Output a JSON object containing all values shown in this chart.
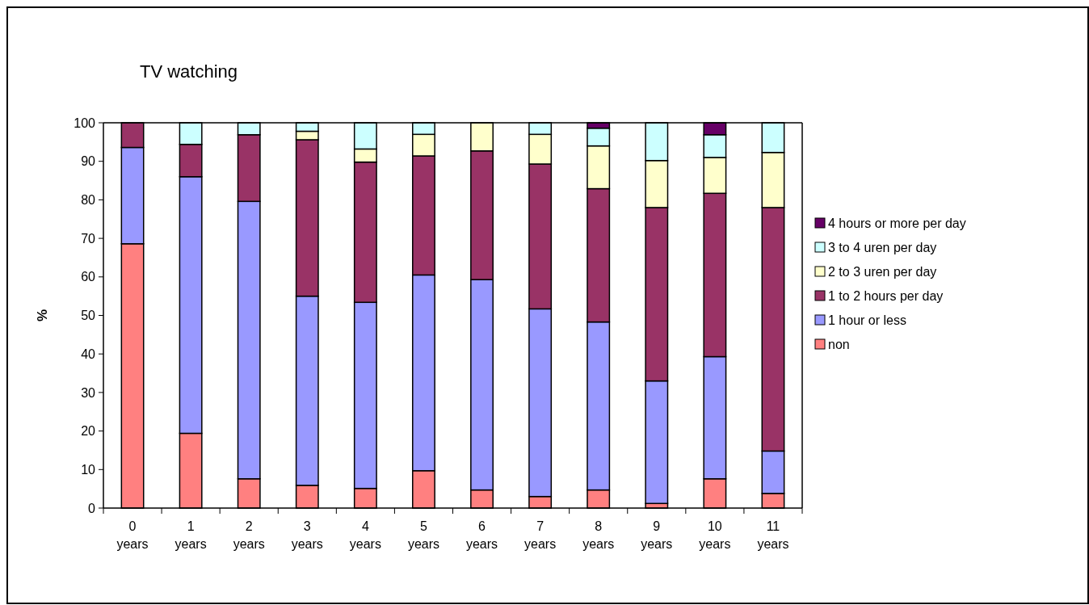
{
  "chart_data": {
    "type": "bar",
    "title": "TV watching",
    "ylabel": "%",
    "stacked": true,
    "legend": "right",
    "grid": false,
    "categories": [
      "0 years",
      "1 years",
      "2 years",
      "3 years",
      "4 years",
      "5 years",
      "6 years",
      "7 years",
      "8 years",
      "9 years",
      "10 years",
      "11 years"
    ],
    "ylim": [
      0,
      100
    ],
    "yticks": [
      0,
      10,
      20,
      30,
      40,
      50,
      60,
      70,
      80,
      90,
      100
    ],
    "series": [
      {
        "name": "non",
        "color": "#ff8080",
        "values": [
          68.6,
          19.4,
          7.6,
          5.9,
          5.1,
          9.7,
          4.7,
          3.0,
          4.7,
          1.2,
          7.6,
          3.8
        ]
      },
      {
        "name": "1 hour or less",
        "color": "#9999ff",
        "values": [
          25.0,
          66.6,
          72.0,
          49.1,
          48.3,
          50.8,
          54.6,
          48.7,
          43.6,
          31.8,
          31.7,
          11.0
        ]
      },
      {
        "name": "1 to 2 hours per day",
        "color": "#993366",
        "values": [
          6.4,
          8.4,
          17.3,
          40.6,
          36.4,
          30.9,
          33.4,
          37.6,
          34.6,
          45.0,
          42.4,
          63.2
        ]
      },
      {
        "name": "2 to 3 uren per day",
        "color": "#ffffcc",
        "values": [
          0,
          0,
          0,
          2.2,
          3.4,
          5.6,
          7.3,
          7.7,
          11.1,
          12.2,
          9.3,
          14.3
        ]
      },
      {
        "name": "3 to 4 uren per day",
        "color": "#ccffff",
        "values": [
          0,
          5.6,
          3.1,
          2.2,
          6.8,
          3.0,
          0,
          3.0,
          4.6,
          9.8,
          5.9,
          7.7
        ]
      },
      {
        "name": "4 hours or more per day",
        "color": "#660066",
        "values": [
          0,
          0,
          0,
          0,
          0,
          0,
          0,
          0,
          1.4,
          0,
          3.1,
          0
        ]
      }
    ]
  }
}
